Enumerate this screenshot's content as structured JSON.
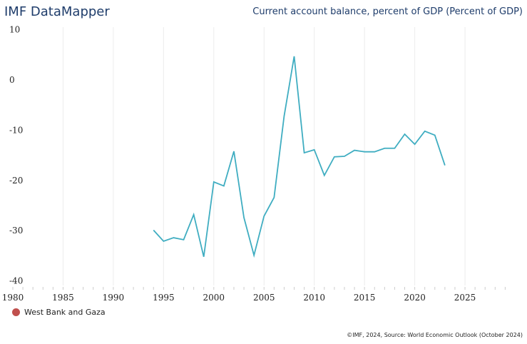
{
  "header": {
    "brand": "IMF DataMapper",
    "title": "Current account balance, percent of GDP (Percent of GDP)"
  },
  "legend": {
    "label": "West Bank and Gaza",
    "dot_color": "#c0504d"
  },
  "footer": {
    "credit": "©IMF, 2024, Source: World Economic Outlook (October 2024)"
  },
  "chart_data": {
    "type": "line",
    "title": "Current account balance, percent of GDP (Percent of GDP)",
    "xlabel": "",
    "ylabel": "",
    "xlim": [
      1980,
      2029
    ],
    "ylim": [
      -40,
      10
    ],
    "x_ticks": [
      1980,
      1985,
      1990,
      1995,
      2000,
      2005,
      2010,
      2015,
      2020,
      2025
    ],
    "y_ticks": [
      10,
      0,
      -10,
      -20,
      -30,
      -40
    ],
    "grid": "vertical",
    "legend_position": "bottom-left",
    "series": [
      {
        "name": "West Bank and Gaza",
        "color": "#3fadc1",
        "x": [
          1994,
          1995,
          1996,
          1997,
          1998,
          1999,
          2000,
          2001,
          2002,
          2003,
          2004,
          2005,
          2006,
          2007,
          2008,
          2009,
          2010,
          2011,
          2012,
          2013,
          2014,
          2015,
          2016,
          2017,
          2018,
          2019,
          2020,
          2021,
          2022,
          2023
        ],
        "values": [
          -29.9,
          -32.1,
          -31.4,
          -31.8,
          -26.8,
          -35.2,
          -20.3,
          -21.1,
          -14.2,
          -27.4,
          -34.9,
          -27.1,
          -23.4,
          -7.2,
          4.7,
          -14.5,
          -13.9,
          -19.0,
          -15.3,
          -15.2,
          -14.0,
          -14.3,
          -14.3,
          -13.6,
          -13.6,
          -10.8,
          -12.8,
          -10.2,
          -11.0,
          -17.0
        ]
      }
    ]
  }
}
